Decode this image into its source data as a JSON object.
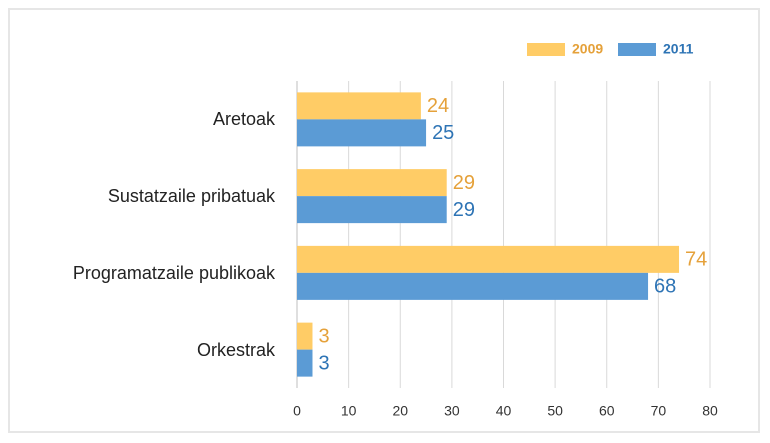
{
  "chart_data": {
    "type": "bar",
    "orientation": "horizontal",
    "categories": [
      "Aretoak",
      "Sustatzaile pribatuak",
      "Programatzaile publikoak",
      "Orkestrak"
    ],
    "series": [
      {
        "name": "2009",
        "color": "#ffcc66",
        "label_color": "#e5a13a",
        "values": [
          24,
          29,
          74,
          3
        ]
      },
      {
        "name": "2011",
        "color": "#5b9bd5",
        "label_color": "#2e74b5",
        "values": [
          25,
          29,
          68,
          3
        ]
      }
    ],
    "xlim": [
      0,
      80
    ],
    "xticks": [
      0,
      10,
      20,
      30,
      40,
      50,
      60,
      70,
      80
    ],
    "grid": true,
    "legend": "top-right"
  }
}
